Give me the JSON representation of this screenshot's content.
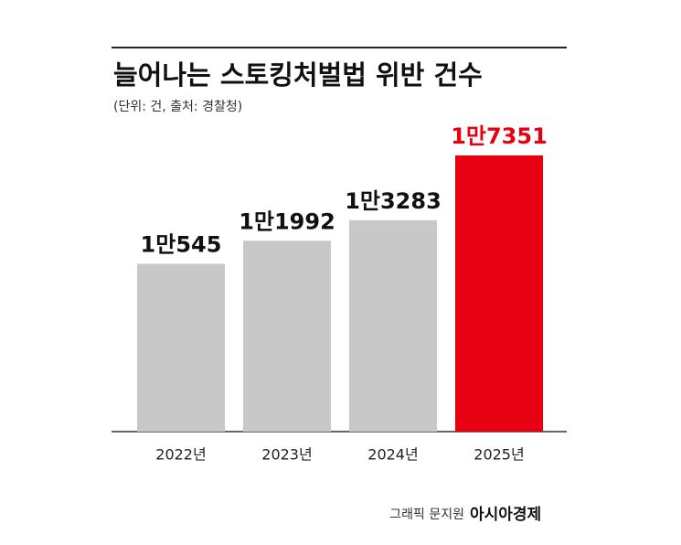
{
  "chart_data": {
    "type": "bar",
    "title": "늘어나는 스토킹처벌법 위반 건수",
    "subtitle": "(단위: 건, 출처: 경찰청)",
    "categories": [
      "2022년",
      "2023년",
      "2024년",
      "2025년"
    ],
    "values": [
      10545,
      11992,
      13283,
      17351
    ],
    "value_labels": [
      "1만545",
      "1만1992",
      "1만3283",
      "1만7351"
    ],
    "colors": [
      "#c8c8c8",
      "#c8c8c8",
      "#c8c8c8",
      "#e60012"
    ],
    "label_colors": [
      "#111111",
      "#111111",
      "#111111",
      "#e60012"
    ],
    "credit": "그래픽 문지원",
    "source_brand": "아시아경제"
  }
}
